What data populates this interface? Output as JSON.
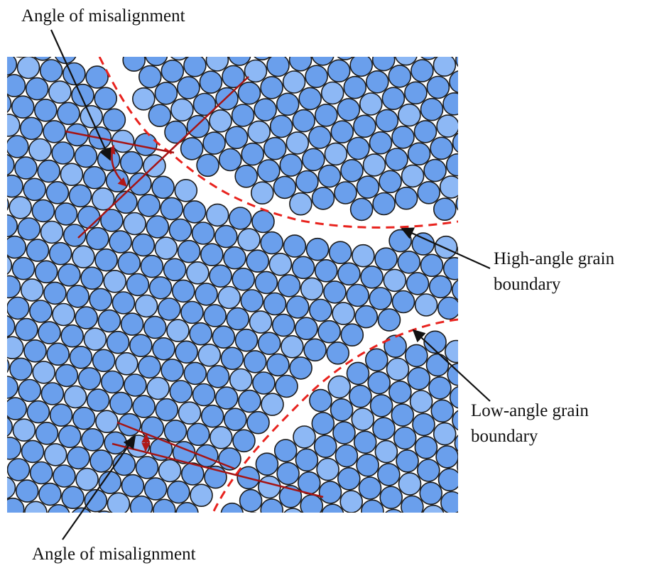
{
  "labels": {
    "top": "Angle of misalignment",
    "high_angle": [
      "High-angle grain",
      "boundary"
    ],
    "low_angle": [
      "Low-angle grain",
      "boundary"
    ],
    "bottom": "Angle of misalignment"
  }
}
